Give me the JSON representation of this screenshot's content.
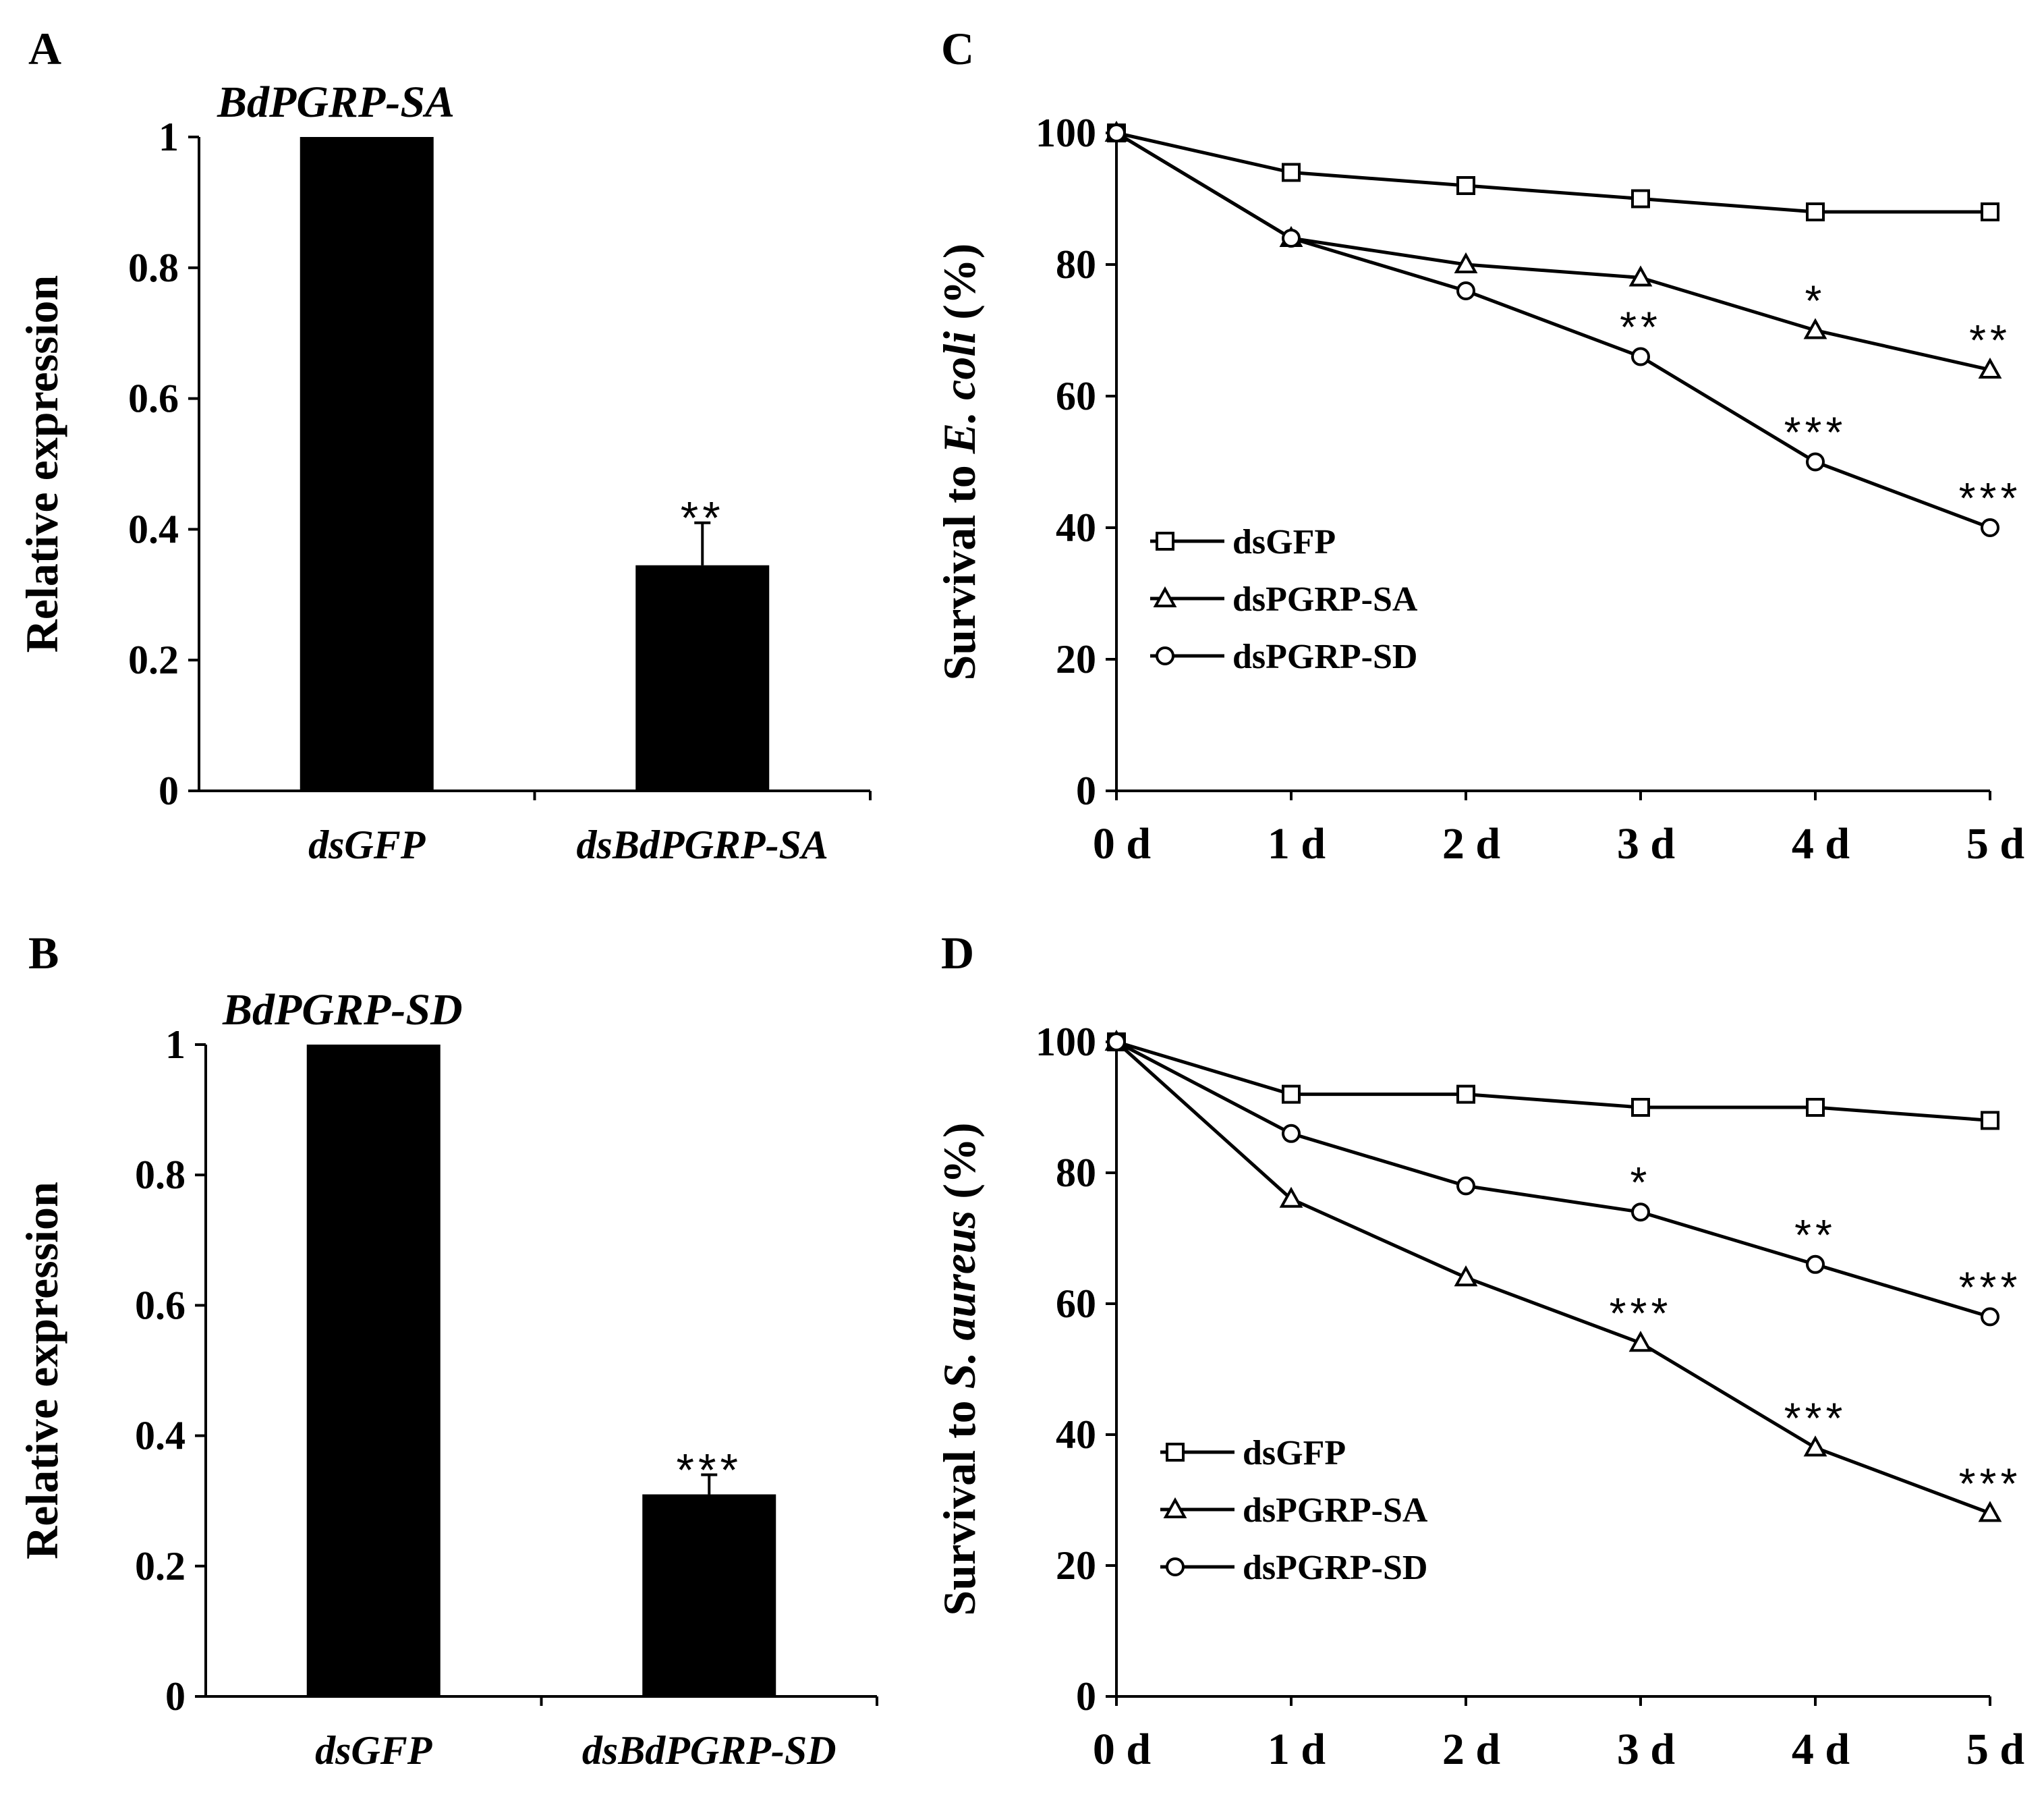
{
  "chart_data": [
    {
      "panel": "A",
      "type": "bar",
      "title": "BdPGRP-SA",
      "ylabel": "Relative expression",
      "ylim": [
        0,
        1
      ],
      "yticks": [
        "0",
        "0.2",
        "0.4",
        "0.6",
        "0.8",
        "1"
      ],
      "categories": [
        "dsGFP",
        "dsBdPGRP-SA"
      ],
      "values": [
        1.0,
        0.345
      ],
      "errors": [
        0,
        0.065
      ],
      "significance": [
        "",
        "**"
      ]
    },
    {
      "panel": "B",
      "type": "bar",
      "title": "BdPGRP-SD",
      "ylabel": "Relative expression",
      "ylim": [
        0,
        1
      ],
      "yticks": [
        "0",
        "0.2",
        "0.4",
        "0.6",
        "0.8",
        "1"
      ],
      "categories": [
        "dsGFP",
        "dsBdPGRP-SD"
      ],
      "values": [
        1.0,
        0.31
      ],
      "errors": [
        0,
        0.03
      ],
      "significance": [
        "",
        "***"
      ]
    },
    {
      "panel": "C",
      "type": "line",
      "ylabel_prefix": "Survival to ",
      "ylabel_italic": "E. coli",
      "ylabel_suffix": " (%)",
      "ylim": [
        0,
        100
      ],
      "yticks": [
        "0",
        "20",
        "40",
        "60",
        "80",
        "100"
      ],
      "categories": [
        "0 d",
        "1 d",
        "2 d",
        "3 d",
        "4 d",
        "5 d"
      ],
      "legend": "left-middle",
      "series": [
        {
          "name": "dsGFP",
          "marker": "square",
          "values": [
            100,
            94,
            92,
            90,
            88,
            88
          ],
          "significance": [
            "",
            "",
            "",
            "",
            "",
            ""
          ]
        },
        {
          "name": "dsPGRP-SA",
          "marker": "triangle",
          "values": [
            100,
            84,
            80,
            78,
            70,
            64
          ],
          "significance": [
            "",
            "",
            "",
            "",
            "*",
            "**"
          ]
        },
        {
          "name": "dsPGRP-SD",
          "marker": "circle",
          "values": [
            100,
            84,
            76,
            66,
            50,
            40
          ],
          "significance": [
            "",
            "",
            "",
            "**",
            "***",
            "***"
          ]
        }
      ]
    },
    {
      "panel": "D",
      "type": "line",
      "ylabel_prefix": "Survival to ",
      "ylabel_italic": "S. aureus",
      "ylabel_suffix": " (%)",
      "ylim": [
        0,
        100
      ],
      "yticks": [
        "0",
        "20",
        "40",
        "60",
        "80",
        "100"
      ],
      "categories": [
        "0 d",
        "1 d",
        "2 d",
        "3 d",
        "4 d",
        "5 d"
      ],
      "legend": "left-middle",
      "series": [
        {
          "name": "dsGFP",
          "marker": "square",
          "values": [
            100,
            92,
            92,
            90,
            90,
            88
          ],
          "significance": [
            "",
            "",
            "",
            "",
            "",
            ""
          ]
        },
        {
          "name": "dsPGRP-SA",
          "marker": "triangle",
          "values": [
            100,
            76,
            64,
            54,
            38,
            28
          ],
          "significance": [
            "",
            "",
            "",
            "***",
            "***",
            "***"
          ]
        },
        {
          "name": "dsPGRP-SD",
          "marker": "circle",
          "values": [
            100,
            86,
            78,
            74,
            66,
            58
          ],
          "significance": [
            "",
            "",
            "",
            "*",
            "**",
            "***"
          ]
        }
      ]
    }
  ]
}
